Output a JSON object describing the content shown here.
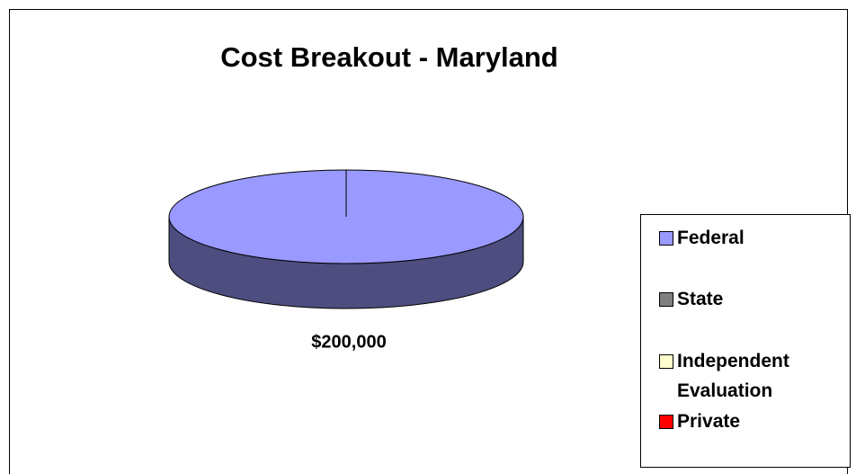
{
  "chart_data": {
    "type": "pie",
    "title": "Cost Breakout - Maryland",
    "categories": [
      "Federal",
      "State",
      "Independent Evaluation",
      "Private"
    ],
    "values": [
      200000,
      0,
      0,
      0
    ],
    "value_labels": [
      "$200,000",
      null,
      null,
      null
    ],
    "colors": [
      "#9999ff",
      "#808080",
      "#ffffcc",
      "#ff0000"
    ],
    "legend": "right"
  }
}
